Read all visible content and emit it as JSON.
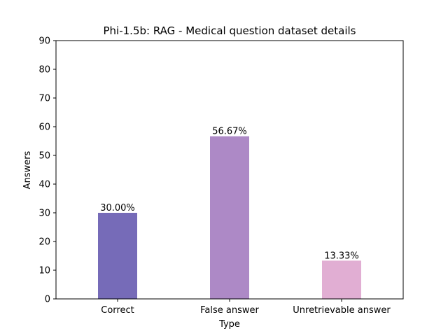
{
  "chart_data": {
    "type": "bar",
    "title": "Phi-1.5b: RAG - Medical question dataset details",
    "xlabel": "Type",
    "ylabel": "Answers",
    "categories": [
      "Correct",
      "False answer",
      "Unretrievable answer"
    ],
    "values": [
      30.0,
      56.67,
      13.33
    ],
    "data_labels": [
      "30.00%",
      "56.67%",
      "13.33%"
    ],
    "colors": [
      "#766bb8",
      "#ad89c6",
      "#e1aed3"
    ],
    "ylim": [
      0,
      90
    ],
    "yticks": [
      "0",
      "10",
      "20",
      "30",
      "40",
      "50",
      "60",
      "70",
      "80",
      "90"
    ],
    "grid": false,
    "legend": "none"
  }
}
